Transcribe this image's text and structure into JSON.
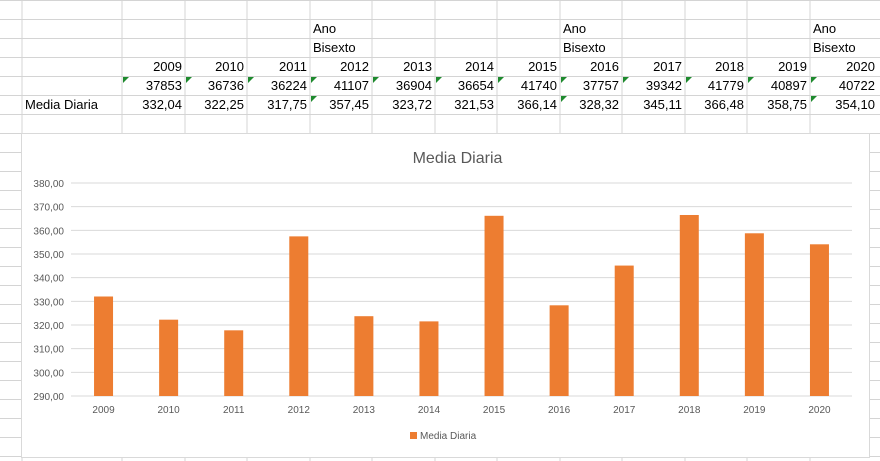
{
  "sheet": {
    "header_rows": {
      "ano_label": "Ano",
      "bisexto_label": "Bisexto"
    },
    "years": [
      "2009",
      "2010",
      "2011",
      "2012",
      "2013",
      "2014",
      "2015",
      "2016",
      "2017",
      "2018",
      "2019",
      "2020"
    ],
    "totals": [
      "37853",
      "36736",
      "36224",
      "41107",
      "36904",
      "36654",
      "41740",
      "37757",
      "39342",
      "41779",
      "40897",
      "40722"
    ],
    "media_label": "Media Diaria",
    "media_values": [
      "332,04",
      "322,25",
      "317,75",
      "357,45",
      "323,72",
      "321,53",
      "366,14",
      "328,32",
      "345,11",
      "366,48",
      "358,75",
      "354,10"
    ],
    "leap_years": [
      "2012",
      "2016",
      "2020"
    ]
  },
  "chart_data": {
    "type": "bar",
    "title": "Media Diaria",
    "categories": [
      "2009",
      "2010",
      "2011",
      "2012",
      "2013",
      "2014",
      "2015",
      "2016",
      "2017",
      "2018",
      "2019",
      "2020"
    ],
    "series": [
      {
        "name": "Media Diaria",
        "values": [
          332.04,
          322.25,
          317.75,
          357.45,
          323.72,
          321.53,
          366.14,
          328.32,
          345.11,
          366.48,
          358.75,
          354.1
        ]
      }
    ],
    "ylim": [
      290,
      380
    ],
    "yticks": [
      "290,00",
      "300,00",
      "310,00",
      "320,00",
      "330,00",
      "340,00",
      "350,00",
      "360,00",
      "370,00",
      "380,00"
    ],
    "grid": true,
    "legend": "bottom",
    "bar_color": "#ed7d31"
  }
}
